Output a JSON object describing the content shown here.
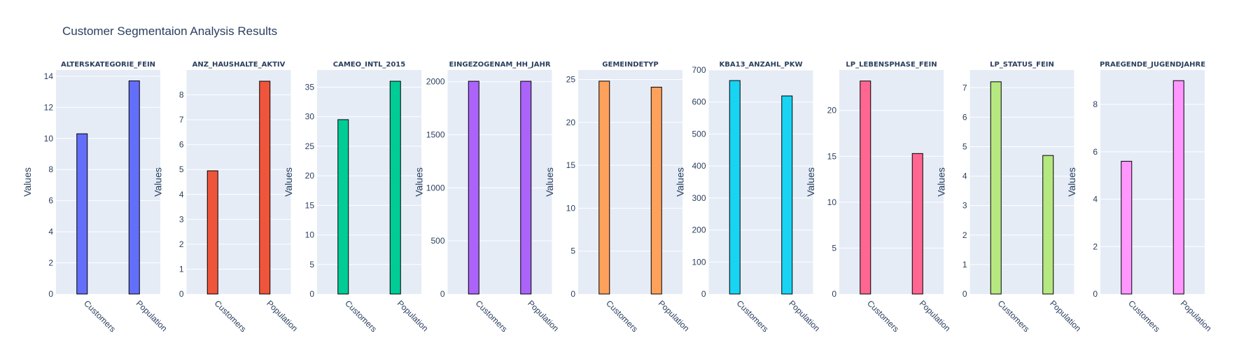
{
  "title": "Customer Segmentaion Analysis Results",
  "colors": {
    "plot_background": "#e5ecf6",
    "grid": "#ffffff",
    "text": "#2a3f5f",
    "bar_outline": "#000000"
  },
  "chart_data": [
    {
      "type": "bar",
      "title": "ALTERSKATEGORIE_FEIN",
      "categories": [
        "Customers",
        "Population"
      ],
      "values": [
        10.3,
        13.7
      ],
      "ylabel": "Values",
      "ylim": [
        0,
        14.4
      ],
      "yticks": [
        0,
        2,
        4,
        6,
        8,
        10,
        12,
        14
      ],
      "color": "#636efa",
      "grid": true
    },
    {
      "type": "bar",
      "title": "ANZ_HAUSHALTE_AKTIV",
      "categories": [
        "Customers",
        "Population"
      ],
      "values": [
        4.95,
        8.55
      ],
      "ylabel": "Values",
      "ylim": [
        0,
        9.0
      ],
      "yticks": [
        0,
        1,
        2,
        3,
        4,
        5,
        6,
        7,
        8
      ],
      "color": "#ef553b",
      "grid": true
    },
    {
      "type": "bar",
      "title": "CAMEO_INTL_2015",
      "categories": [
        "Customers",
        "Population"
      ],
      "values": [
        29.5,
        36.0
      ],
      "ylabel": "Values",
      "ylim": [
        0,
        37.9
      ],
      "yticks": [
        0,
        5,
        10,
        15,
        20,
        25,
        30,
        35
      ],
      "color": "#00cc96",
      "grid": true
    },
    {
      "type": "bar",
      "title": "EINGEZOGENAM_HH_JAHR",
      "categories": [
        "Customers",
        "Population"
      ],
      "values": [
        2004,
        2004
      ],
      "ylabel": "Values",
      "ylim": [
        0,
        2110
      ],
      "yticks": [
        0,
        500,
        1000,
        1500,
        2000
      ],
      "color": "#ab63fa",
      "grid": true
    },
    {
      "type": "bar",
      "title": "GEMEINDETYP",
      "categories": [
        "Customers",
        "Population"
      ],
      "values": [
        24.8,
        24.1
      ],
      "ylabel": "Values",
      "ylim": [
        0,
        26.1
      ],
      "yticks": [
        0,
        5,
        10,
        15,
        20,
        25
      ],
      "color": "#ffa15a",
      "grid": true
    },
    {
      "type": "bar",
      "title": "KBA13_ANZAHL_PKW",
      "categories": [
        "Customers",
        "Population"
      ],
      "values": [
        667,
        619
      ],
      "ylabel": "Values",
      "ylim": [
        0,
        700
      ],
      "yticks": [
        0,
        100,
        200,
        300,
        400,
        500,
        600,
        700
      ],
      "color": "#19d3f3",
      "grid": true
    },
    {
      "type": "bar",
      "title": "LP_LEBENSPHASE_FEIN",
      "categories": [
        "Customers",
        "Population"
      ],
      "values": [
        23.2,
        15.3
      ],
      "ylabel": "Values",
      "ylim": [
        0,
        24.4
      ],
      "yticks": [
        0,
        5,
        10,
        15,
        20
      ],
      "color": "#ff6692",
      "grid": true
    },
    {
      "type": "bar",
      "title": "LP_STATUS_FEIN",
      "categories": [
        "Customers",
        "Population"
      ],
      "values": [
        7.2,
        4.7
      ],
      "ylabel": "Values",
      "ylim": [
        0,
        7.6
      ],
      "yticks": [
        0,
        1,
        2,
        3,
        4,
        5,
        6,
        7
      ],
      "color": "#b6e880",
      "grid": true
    },
    {
      "type": "bar",
      "title": "PRAEGENDE_JUGENDJAHRE",
      "categories": [
        "Customers",
        "Population"
      ],
      "values": [
        5.6,
        9.0
      ],
      "ylabel": "Values",
      "ylim": [
        0,
        9.45
      ],
      "yticks": [
        0,
        2,
        4,
        6,
        8
      ],
      "color": "#ff97ff",
      "grid": true
    }
  ]
}
